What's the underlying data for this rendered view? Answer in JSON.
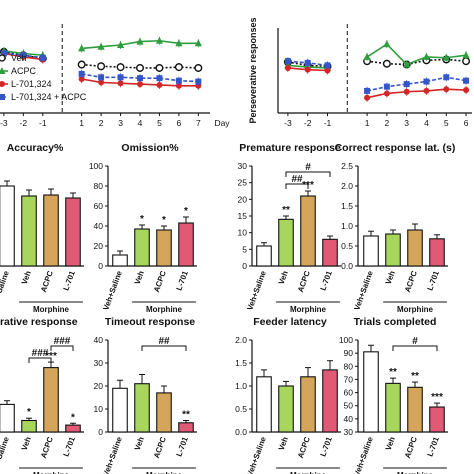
{
  "colors": {
    "veh_saline": "#ffffff",
    "veh": "#a8d65c",
    "acpc": "#d4a55a",
    "l701": "#e05a76",
    "line_veh": "#111111",
    "line_acpc": "#2e9e3e",
    "line_l701": "#d42626",
    "line_combo": "#3556c8"
  },
  "chart_data": [
    {
      "type": "line",
      "id": "timecourse-left",
      "xlabel": "Day",
      "ylabel": "",
      "x_ticks": [
        "-3",
        "-2",
        "-1",
        "1",
        "2",
        "3",
        "4",
        "5",
        "6",
        "7"
      ],
      "xlim": [
        -3.2,
        7.6
      ],
      "ylim": [
        0,
        100
      ],
      "legend": [
        "Veh",
        "ACPC",
        "L-701,324",
        "L-701,324 + ACPC"
      ],
      "legend_position": "bottom-left",
      "series": [
        {
          "name": "Veh",
          "style": "dotted-open-circle",
          "color": "line_veh",
          "x": [
            -3,
            -2,
            -1,
            1,
            2,
            3,
            4,
            5,
            6,
            7
          ],
          "y": [
            72,
            68,
            64,
            57,
            55,
            54,
            53,
            53,
            54,
            53
          ]
        },
        {
          "name": "ACPC",
          "style": "solid-triangle",
          "color": "line_acpc",
          "x": [
            -3,
            -2,
            -1,
            1,
            2,
            3,
            4,
            5,
            6,
            7
          ],
          "y": [
            73,
            70,
            68,
            76,
            78,
            80,
            84,
            85,
            82,
            82
          ]
        },
        {
          "name": "L-701,324",
          "style": "solid-filled-circle",
          "color": "line_l701",
          "x": [
            -3,
            -2,
            -1,
            1,
            2,
            3,
            4,
            5,
            6,
            7
          ],
          "y": [
            70,
            66,
            63,
            40,
            36,
            35,
            34,
            33,
            32,
            32
          ]
        },
        {
          "name": "L-701,324 + ACPC",
          "style": "dashed-square",
          "color": "line_combo",
          "x": [
            -3,
            -2,
            -1,
            1,
            2,
            3,
            4,
            5,
            6,
            7
          ],
          "y": [
            70,
            68,
            65,
            46,
            42,
            42,
            41,
            41,
            38,
            37
          ]
        }
      ]
    },
    {
      "type": "line",
      "id": "timecourse-right",
      "ylabel": "Perseverative responses",
      "x_ticks": [
        "-3",
        "-2",
        "-1",
        "1",
        "2",
        "3",
        "4",
        "5",
        "6"
      ],
      "xlim": [
        -3.5,
        6.3
      ],
      "ylim": [
        0,
        10
      ],
      "series": [
        {
          "name": "Veh",
          "x": [
            -3,
            -2,
            -1,
            1,
            2,
            3,
            4,
            5,
            6
          ],
          "y": [
            6.0,
            5.6,
            5.5,
            6.1,
            5.8,
            5.7,
            6.2,
            6.3,
            6.1
          ]
        },
        {
          "name": "ACPC",
          "x": [
            -3,
            -2,
            -1,
            1,
            2,
            3,
            4,
            5,
            6
          ],
          "y": [
            5.6,
            5.4,
            5.3,
            6.6,
            8.1,
            5.7,
            6.6,
            6.5,
            6.8
          ]
        },
        {
          "name": "L-701,324",
          "x": [
            -3,
            -2,
            -1,
            1,
            2,
            3,
            4,
            5,
            6
          ],
          "y": [
            5.3,
            5.1,
            5.0,
            1.8,
            2.3,
            2.5,
            2.6,
            2.8,
            2.7
          ]
        },
        {
          "name": "L-701,324 + ACPC",
          "x": [
            -3,
            -2,
            -1,
            1,
            2,
            3,
            4,
            5,
            6
          ],
          "y": [
            6.1,
            5.9,
            5.6,
            2.6,
            3.1,
            3.4,
            3.7,
            4.2,
            3.8
          ]
        }
      ]
    },
    {
      "type": "bar",
      "id": "accuracy",
      "title": "Accuracy%",
      "categories": [
        "Veh+Saline",
        "Veh",
        "ACPC",
        "L-701"
      ],
      "values": [
        80,
        70,
        71,
        68
      ],
      "errors": [
        5,
        6,
        6,
        5
      ],
      "y_ticks": [],
      "ylim": [
        0,
        100
      ],
      "group_label": "Morphine",
      "annotations": []
    },
    {
      "type": "bar",
      "id": "omission",
      "title": "Omission%",
      "categories": [
        "Veh+Saline",
        "Veh",
        "ACPC",
        "L-701"
      ],
      "values": [
        11,
        37,
        36,
        43
      ],
      "errors": [
        4,
        4,
        4,
        6
      ],
      "y_ticks": [
        "0",
        "20",
        "40",
        "60",
        "80",
        "100"
      ],
      "ylim": [
        0,
        100
      ],
      "group_label": "Morphine",
      "annotations": [
        "",
        "*",
        "*",
        "*"
      ]
    },
    {
      "type": "bar",
      "id": "premature",
      "title": "Premature response",
      "categories": [
        "Veh+Saline",
        "Veh",
        "ACPC",
        "L-701"
      ],
      "values": [
        6,
        14,
        21,
        8
      ],
      "errors": [
        1,
        1,
        1.5,
        1
      ],
      "y_ticks": [
        "0",
        "5",
        "10",
        "15",
        "20",
        "25",
        "30"
      ],
      "ylim": [
        0,
        30
      ],
      "group_label": "Morphine",
      "annotations": [
        "",
        "**",
        "***",
        ""
      ],
      "brackets": [
        {
          "from": 1,
          "to": 2,
          "label": "##"
        },
        {
          "from": 1,
          "to": 3,
          "label": "#"
        }
      ]
    },
    {
      "type": "bar",
      "id": "correct-lat",
      "title": "Correct response lat. (s)",
      "categories": [
        "Veh+Saline",
        "Veh",
        "ACPC",
        "L-701"
      ],
      "values": [
        0.75,
        0.8,
        0.9,
        0.68
      ],
      "errors": [
        0.12,
        0.1,
        0.15,
        0.1
      ],
      "y_ticks": [
        "0.0",
        "0.5",
        "1.0",
        "1.5",
        "2.0",
        "2.5"
      ],
      "ylim": [
        0,
        2.5
      ],
      "group_label": "Morphine",
      "annotations": []
    },
    {
      "type": "bar",
      "id": "perseverative",
      "title": "everative response",
      "categories": [
        "Veh+Saline",
        "Veh",
        "ACPC",
        "L-701"
      ],
      "values": [
        6,
        2.5,
        14,
        1.5
      ],
      "errors": [
        0.8,
        0.5,
        1.2,
        0.4
      ],
      "y_ticks": [],
      "ylim": [
        0,
        20
      ],
      "group_label": "Morphine",
      "annotations": [
        "",
        "*",
        "***",
        "*"
      ],
      "brackets": [
        {
          "from": 1,
          "to": 2,
          "label": "###"
        },
        {
          "from": 2,
          "to": 3,
          "label": "###"
        }
      ]
    },
    {
      "type": "bar",
      "id": "timeout",
      "title": "Timeout response",
      "categories": [
        "Veh+Saline",
        "Veh",
        "ACPC",
        "L-701"
      ],
      "values": [
        19,
        21,
        17,
        4
      ],
      "errors": [
        3.5,
        4,
        3,
        1
      ],
      "y_ticks": [
        "0",
        "10",
        "20",
        "30",
        "40"
      ],
      "ylim": [
        0,
        40
      ],
      "group_label": "Morphine",
      "annotations": [
        "",
        "",
        "",
        "**"
      ],
      "brackets": [
        {
          "from": 1,
          "to": 3,
          "label": "##"
        }
      ]
    },
    {
      "type": "bar",
      "id": "feeder",
      "title": "Feeder latency",
      "categories": [
        "Veh+Saline",
        "Veh",
        "ACPC",
        "L-701"
      ],
      "values": [
        1.2,
        1.0,
        1.2,
        1.35
      ],
      "errors": [
        0.15,
        0.1,
        0.2,
        0.2
      ],
      "y_ticks": [
        "0.0",
        "0.5",
        "1.0",
        "1.5",
        "2.0"
      ],
      "ylim": [
        0,
        2.0
      ],
      "group_label": "Morphine",
      "annotations": []
    },
    {
      "type": "bar",
      "id": "trials",
      "title": "Trials completed",
      "categories": [
        "Veh+Saline",
        "Veh",
        "ACPC",
        "L-701"
      ],
      "values": [
        91,
        67,
        64,
        49
      ],
      "errors": [
        5,
        4,
        4,
        3
      ],
      "y_ticks": [
        "30",
        "40",
        "50",
        "60",
        "70",
        "80",
        "90",
        "100"
      ],
      "ylim": [
        30,
        100
      ],
      "group_label": "Morphine",
      "annotations": [
        "",
        "**",
        "**",
        "***"
      ],
      "brackets": [
        {
          "from": 1,
          "to": 3,
          "label": "#"
        }
      ]
    }
  ]
}
